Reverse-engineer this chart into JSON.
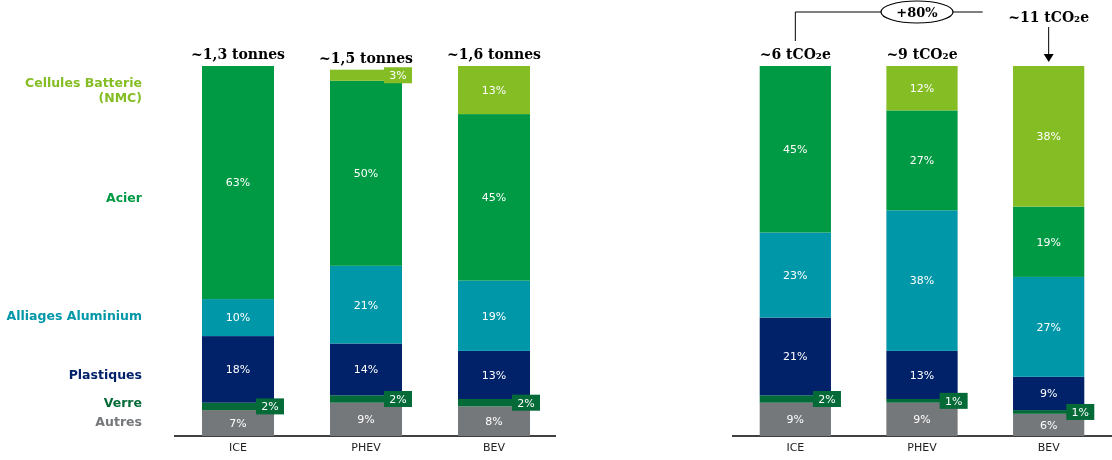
{
  "chart_data": [
    {
      "type": "bar",
      "stacked": true,
      "legend": "left",
      "categories": [
        "ICE",
        "PHEV",
        "BEV"
      ],
      "series": [
        {
          "name": "Autres",
          "color": "#75787b",
          "values": [
            7,
            9,
            8
          ],
          "value_labels": [
            "7%",
            "9%",
            "8%"
          ]
        },
        {
          "name": "Verre",
          "color": "#046a38",
          "values": [
            2,
            2,
            2
          ],
          "value_labels": [
            "2%",
            "2%",
            "2%"
          ]
        },
        {
          "name": "Plastiques",
          "color": "#012169",
          "values": [
            18,
            14,
            13
          ],
          "value_labels": [
            "18%",
            "14%",
            "13%"
          ]
        },
        {
          "name": "Alliages Aluminium",
          "color": "#0097a9",
          "values": [
            10,
            21,
            19
          ],
          "value_labels": [
            "10%",
            "21%",
            "19%"
          ]
        },
        {
          "name": "Acier",
          "color": "#009a44",
          "values": [
            63,
            50,
            45
          ],
          "value_labels": [
            "63%",
            "50%",
            "45%"
          ]
        },
        {
          "name": "Cellules Batterie (NMC)",
          "color": "#84bd24",
          "values": [
            null,
            3,
            13
          ],
          "value_labels": [
            null,
            "3%",
            "13%"
          ]
        }
      ],
      "annotations": [
        {
          "text": "~1,3 tonnes",
          "x": "ICE",
          "y": 100
        },
        {
          "text": "~1,5 tonnes",
          "x": "PHEV",
          "y": 99
        },
        {
          "text": "~1,6 tonnes",
          "x": "BEV",
          "y": 100
        }
      ]
    },
    {
      "type": "bar",
      "stacked": true,
      "categories": [
        "ICE",
        "PHEV",
        "BEV"
      ],
      "series": [
        {
          "color": "#75787b",
          "values": [
            9,
            9,
            6
          ],
          "value_labels": [
            "9%",
            "9%",
            "6%"
          ]
        },
        {
          "color": "#046a38",
          "values": [
            2,
            1,
            1
          ],
          "value_labels": [
            "2%",
            "1%",
            "1%"
          ]
        },
        {
          "color": "#012169",
          "values": [
            21,
            13,
            9
          ],
          "value_labels": [
            "21%",
            "13%",
            "9%"
          ]
        },
        {
          "color": "#0097a9",
          "values": [
            23,
            38,
            27
          ],
          "value_labels": [
            "23%",
            "38%",
            "27%"
          ]
        },
        {
          "color": "#009a44",
          "values": [
            45,
            27,
            19
          ],
          "value_labels": [
            "45%",
            "27%",
            "19%"
          ]
        },
        {
          "color": "#84bd24",
          "values": [
            null,
            12,
            38
          ],
          "value_labels": [
            null,
            "12%",
            "38%"
          ]
        }
      ],
      "annotations": [
        {
          "text": "~6 tCO₂e",
          "x": "ICE",
          "y": 100
        },
        {
          "text": "~9 tCO₂e",
          "x": "PHEV",
          "y": 100
        },
        {
          "text": "~11 tCO₂e",
          "x": "BEV",
          "y": 100
        },
        "+80%"
      ]
    }
  ]
}
